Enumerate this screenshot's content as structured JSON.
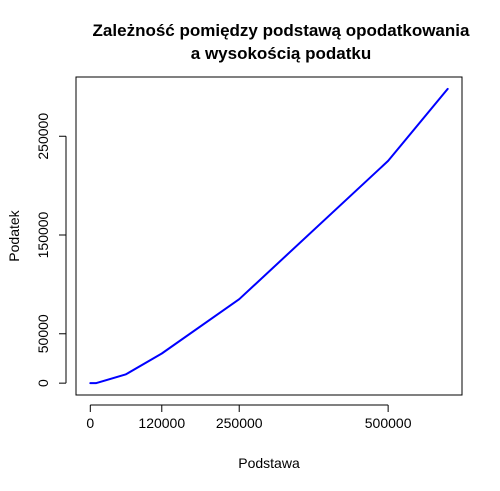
{
  "chart_data": {
    "type": "line",
    "title_lines": [
      "Zależność pomiędzy podstawą opodatkowania",
      "a wysokością podatku"
    ],
    "xlabel": "Podstawa",
    "ylabel": "Podatek",
    "x_ticks": [
      "0",
      "120000",
      "250000",
      "500000"
    ],
    "y_ticks": [
      "0",
      "50000",
      "150000",
      "250000"
    ],
    "x_tick_values": [
      0,
      120000,
      250000,
      500000
    ],
    "y_tick_values": [
      0,
      50000,
      150000,
      250000
    ],
    "xlim": [
      -24000,
      624000
    ],
    "ylim": [
      -12000,
      310000
    ],
    "grid": false,
    "legend": "none",
    "series": [
      {
        "color": "#0000ff",
        "x": [
          0,
          10000,
          60000,
          120000,
          250000,
          500000,
          600000
        ],
        "y": [
          0,
          0,
          9000,
          30000,
          85000,
          225000,
          298000
        ]
      }
    ]
  }
}
